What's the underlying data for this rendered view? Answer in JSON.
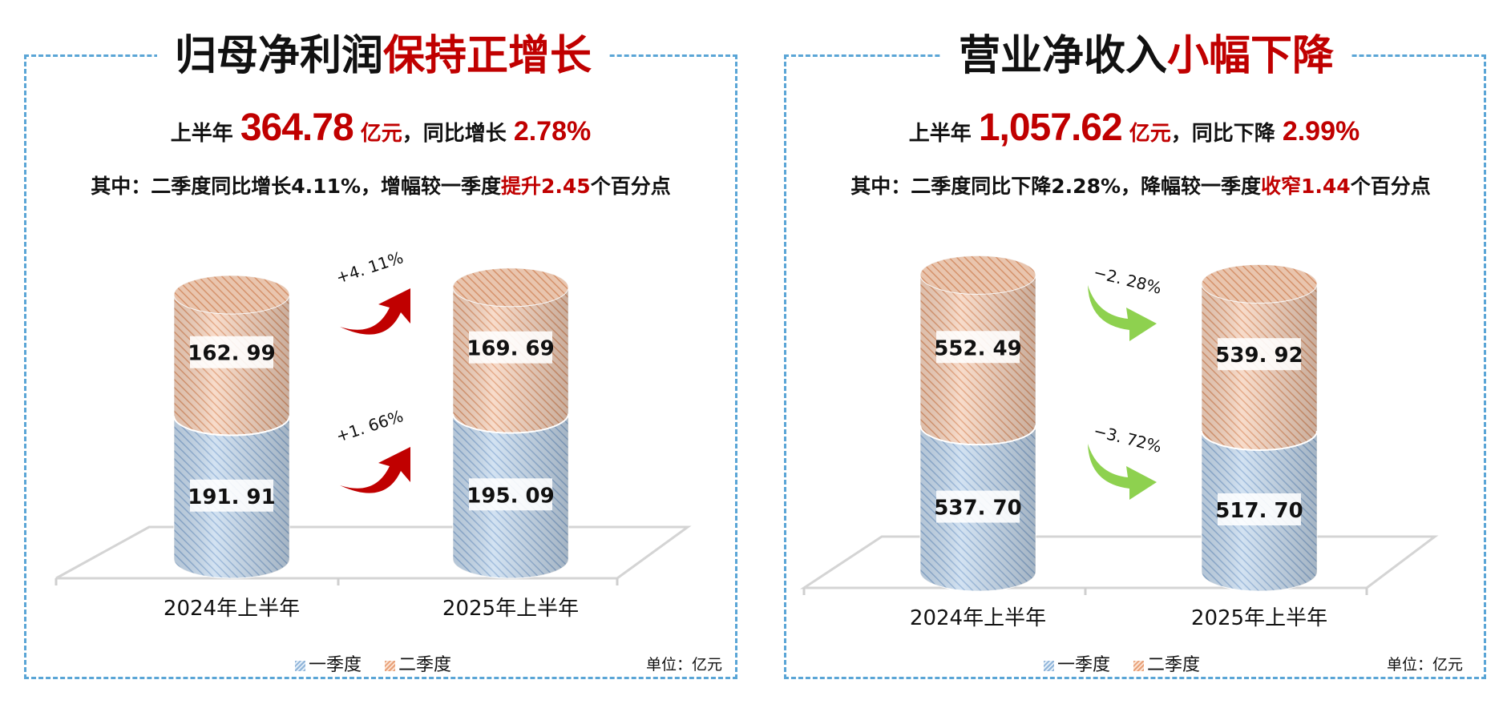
{
  "colors": {
    "accent_red": "#c00000",
    "border_blue": "#5aa5d6",
    "q1_blue": "#9dbfe0",
    "q2_orange": "#eaa882",
    "arrow_red": "#c00000",
    "arrow_green": "#8ed14f"
  },
  "legend": {
    "q1": "一季度",
    "q2": "二季度"
  },
  "unit_note": "单位：亿元",
  "left": {
    "title_black": "归母净利润",
    "title_red": "保持正增长",
    "headline": {
      "prefix": "上半年",
      "value": "364.78",
      "unit": "亿元",
      "mid": "，同比增长",
      "pct": "2.78%"
    },
    "sub": {
      "prefix": "其中：二季度同比增长4.11%，增幅较一季度",
      "red": "提升2.45",
      "suffix": "个百分点"
    }
  },
  "right": {
    "title_black": "营业净收入",
    "title_red": "小幅下降",
    "headline": {
      "prefix": "上半年",
      "value": "1,057.62",
      "unit": "亿元",
      "mid": "，同比下降",
      "pct": "2.99%"
    },
    "sub": {
      "prefix": "其中：二季度同比下降2.28%，降幅较一季度",
      "red": "收窄1.44",
      "suffix": "个百分点"
    }
  },
  "chart_data": [
    {
      "type": "bar",
      "stacked": true,
      "categories": [
        "2024年上半年",
        "2025年上半年"
      ],
      "series": [
        {
          "name": "一季度",
          "values": [
            191.91,
            195.09
          ],
          "labels": [
            "191. 91",
            "195. 09"
          ]
        },
        {
          "name": "二季度",
          "values": [
            162.99,
            169.69
          ],
          "labels": [
            "162. 99",
            "169. 69"
          ]
        }
      ],
      "annotations": [
        {
          "series": "一季度",
          "text": "+1. 66%",
          "direction": "up"
        },
        {
          "series": "二季度",
          "text": "+4. 11%",
          "direction": "up"
        }
      ]
    },
    {
      "type": "bar",
      "stacked": true,
      "categories": [
        "2024年上半年",
        "2025年上半年"
      ],
      "series": [
        {
          "name": "一季度",
          "values": [
            537.7,
            517.7
          ],
          "labels": [
            "537. 70",
            "517. 70"
          ]
        },
        {
          "name": "二季度",
          "values": [
            552.49,
            539.92
          ],
          "labels": [
            "552. 49",
            "539. 92"
          ]
        }
      ],
      "annotations": [
        {
          "series": "一季度",
          "text": "−3. 72%",
          "direction": "down"
        },
        {
          "series": "二季度",
          "text": "−2. 28%",
          "direction": "down"
        }
      ]
    }
  ]
}
